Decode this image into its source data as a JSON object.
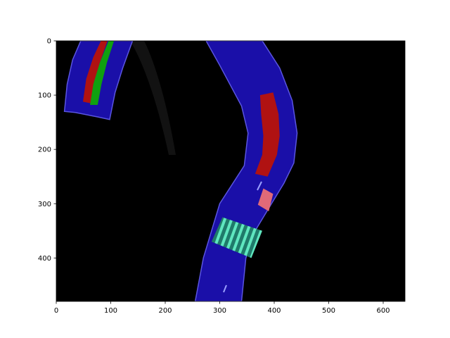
{
  "colors": {
    "figure_bg": "#ffffff",
    "plot_bg": "#000000",
    "axis": "#000000",
    "road": "#1a0fa8",
    "road_edge": "#5a55e0",
    "lane_red": "#b01212",
    "lane_green": "#0fa00f",
    "crosswalk": "#3fd0a8",
    "marker_pink": "#e06a78",
    "shadow": "#141414"
  },
  "chart_data": {
    "type": "image",
    "title": "",
    "xlabel": "",
    "ylabel": "",
    "xlim": [
      0,
      640
    ],
    "ylim": [
      480,
      0
    ],
    "xticks": [
      0,
      100,
      200,
      300,
      400,
      500,
      600
    ],
    "yticks": [
      0,
      100,
      200,
      300,
      400
    ],
    "xtick_labels": [
      "0",
      "100",
      "200",
      "300",
      "400",
      "500",
      "600"
    ],
    "ytick_labels": [
      "0",
      "100",
      "200",
      "300",
      "400"
    ],
    "grid": false,
    "regions": [
      {
        "name": "road-left",
        "fill": "road",
        "points": [
          [
            45,
            0
          ],
          [
            140,
            0
          ],
          [
            122,
            50
          ],
          [
            108,
            95
          ],
          [
            98,
            145
          ],
          [
            75,
            140
          ],
          [
            35,
            132
          ],
          [
            15,
            130
          ],
          [
            20,
            80
          ],
          [
            30,
            35
          ]
        ]
      },
      {
        "name": "lane-red-left",
        "fill": "lane_red",
        "points": [
          [
            82,
            0
          ],
          [
            94,
            0
          ],
          [
            80,
            40
          ],
          [
            70,
            75
          ],
          [
            63,
            115
          ],
          [
            49,
            112
          ],
          [
            55,
            70
          ],
          [
            68,
            30
          ]
        ]
      },
      {
        "name": "lane-green-left",
        "fill": "lane_green",
        "points": [
          [
            96,
            0
          ],
          [
            106,
            0
          ],
          [
            93,
            40
          ],
          [
            83,
            80
          ],
          [
            76,
            118
          ],
          [
            62,
            118
          ],
          [
            68,
            80
          ],
          [
            80,
            40
          ]
        ]
      },
      {
        "name": "road-right",
        "fill": "road",
        "points": [
          [
            275,
            0
          ],
          [
            378,
            0
          ],
          [
            410,
            50
          ],
          [
            433,
            110
          ],
          [
            442,
            170
          ],
          [
            436,
            225
          ],
          [
            418,
            262
          ],
          [
            395,
            300
          ],
          [
            365,
            350
          ],
          [
            348,
            400
          ],
          [
            340,
            480
          ],
          [
            255,
            480
          ],
          [
            270,
            400
          ],
          [
            300,
            300
          ],
          [
            345,
            230
          ],
          [
            352,
            170
          ],
          [
            340,
            120
          ],
          [
            300,
            45
          ]
        ]
      },
      {
        "name": "lane-red-right",
        "fill": "lane_red",
        "points": [
          [
            374,
            100
          ],
          [
            398,
            95
          ],
          [
            408,
            135
          ],
          [
            410,
            175
          ],
          [
            405,
            210
          ],
          [
            388,
            250
          ],
          [
            365,
            245
          ],
          [
            378,
            210
          ],
          [
            380,
            175
          ],
          [
            376,
            135
          ]
        ]
      },
      {
        "name": "crosswalk",
        "fill": "crosswalk",
        "points": [
          [
            305,
            325
          ],
          [
            378,
            350
          ],
          [
            358,
            400
          ],
          [
            285,
            370
          ]
        ]
      },
      {
        "name": "marker-pink",
        "fill": "marker_pink",
        "points": [
          [
            380,
            272
          ],
          [
            398,
            282
          ],
          [
            390,
            314
          ],
          [
            370,
            302
          ]
        ]
      }
    ]
  }
}
